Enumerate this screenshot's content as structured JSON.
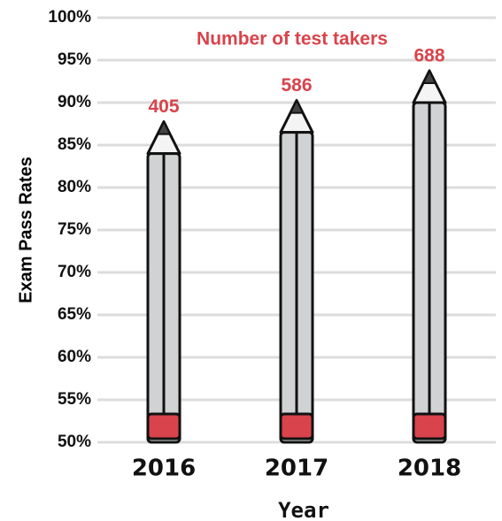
{
  "chart_data": {
    "type": "bar",
    "annotation": "Number of test takers",
    "x_label": "Year",
    "y_label": "Exam Pass Rates",
    "categories": [
      "2016",
      "2017",
      "2018"
    ],
    "values": [
      84,
      86.5,
      90
    ],
    "test_takers": [
      405,
      586,
      688
    ],
    "color": "#d0d2d3",
    "label_color": "#d9434b",
    "ylim": [
      50,
      100
    ],
    "yticks": [
      {
        "value": 50,
        "label": "50%"
      },
      {
        "value": 55,
        "label": "55%"
      },
      {
        "value": 60,
        "label": "60%"
      },
      {
        "value": 65,
        "label": "65%"
      },
      {
        "value": 70,
        "label": "70%"
      },
      {
        "value": 75,
        "label": "75%"
      },
      {
        "value": 80,
        "label": "80%"
      },
      {
        "value": 85,
        "label": "85%"
      },
      {
        "value": 90,
        "label": "90%"
      },
      {
        "value": 95,
        "label": "95%"
      },
      {
        "value": 100,
        "label": "100%"
      }
    ],
    "grid": true
  }
}
